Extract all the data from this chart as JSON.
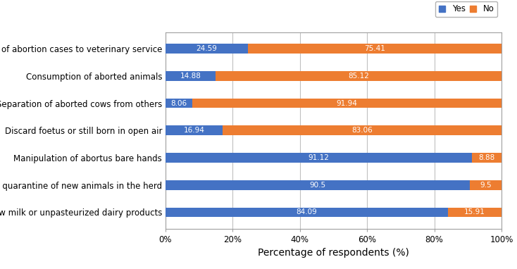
{
  "categories": [
    "Consumption raw milk or unpasteurized dairy products",
    "Not quarantine of new animals in the herd",
    "Manipulation of abortus bare hands",
    "Discard foetus or still born in open air",
    "Separation of aborted cows from others",
    "Consumption of aborted animals",
    "Report of abortion cases to veterinary service"
  ],
  "yes_values": [
    84.09,
    90.5,
    91.12,
    16.94,
    8.06,
    14.88,
    24.59
  ],
  "no_values": [
    15.91,
    9.5,
    8.88,
    83.06,
    91.94,
    85.12,
    75.41
  ],
  "yes_color": "#4472C4",
  "no_color": "#ED7D31",
  "xlabel": "Percentage of respondents (%)",
  "xtick_labels": [
    "0%",
    "20%",
    "40%",
    "60%",
    "80%",
    "100%"
  ],
  "xtick_values": [
    0,
    20,
    40,
    60,
    80,
    100
  ],
  "bar_height": 0.35,
  "text_fontsize": 7.5,
  "label_fontsize": 10,
  "tick_fontsize": 8.5,
  "background_color": "#ffffff",
  "grid_color": "#c0c0c0",
  "border_color": "#a0a0a0"
}
